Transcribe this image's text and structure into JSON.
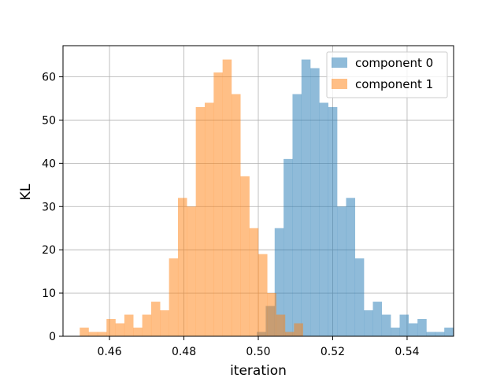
{
  "chart_data": {
    "type": "bar",
    "title": "",
    "xlabel": "iteration",
    "ylabel": "KL",
    "xlim": [
      0.4475,
      0.5525
    ],
    "ylim": [
      0,
      67.2
    ],
    "xticks": [
      0.46,
      0.48,
      0.5,
      0.52,
      0.54
    ],
    "xtick_labels": [
      "0.46",
      "0.48",
      "0.50",
      "0.52",
      "0.54"
    ],
    "yticks": [
      0,
      10,
      20,
      30,
      40,
      50,
      60
    ],
    "ytick_labels": [
      "0",
      "10",
      "20",
      "30",
      "40",
      "50",
      "60"
    ],
    "grid": true,
    "legend_position": "top-right",
    "bin_width": 0.0024,
    "series": [
      {
        "name": "component 0",
        "color": "#1f77b4",
        "alpha": 0.5,
        "x_start": 0.4996,
        "values": [
          1,
          7,
          25,
          41,
          56,
          64,
          62,
          54,
          53,
          30,
          32,
          18,
          6,
          8,
          5,
          2,
          5,
          3,
          4,
          1,
          1,
          2
        ]
      },
      {
        "name": "component 1",
        "color": "#ff7f0e",
        "alpha": 0.5,
        "x_start": 0.452,
        "values": [
          2,
          1,
          1,
          4,
          3,
          5,
          2,
          5,
          8,
          6,
          18,
          32,
          30,
          53,
          54,
          61,
          64,
          56,
          37,
          25,
          19,
          10,
          5,
          1,
          3
        ]
      }
    ]
  }
}
